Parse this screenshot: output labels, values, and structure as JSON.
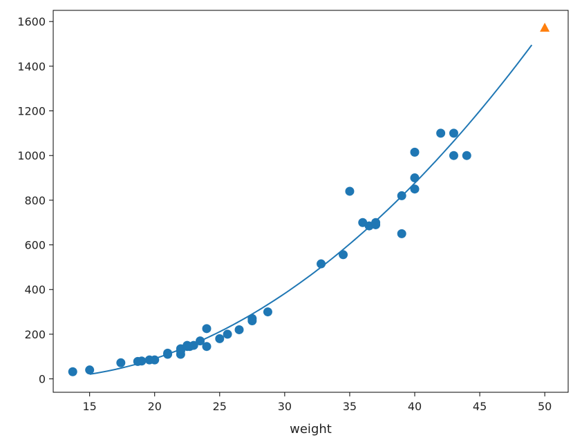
{
  "chart_data": {
    "type": "scatter",
    "title": "",
    "xlabel": "weight",
    "ylabel": "",
    "xlim": [
      12.2,
      51.8
    ],
    "ylim": [
      -60,
      1650
    ],
    "xticks": [
      15,
      20,
      25,
      30,
      35,
      40,
      45,
      50
    ],
    "yticks": [
      0,
      200,
      400,
      600,
      800,
      1000,
      1200,
      1400,
      1600
    ],
    "grid": false,
    "colors": {
      "blue": "#1f77b4",
      "orange": "#ff7f0e"
    },
    "scatter_points": [
      [
        13.7,
        32
      ],
      [
        15.0,
        40
      ],
      [
        17.4,
        72
      ],
      [
        18.7,
        78
      ],
      [
        19.0,
        80
      ],
      [
        19.6,
        85
      ],
      [
        20.0,
        85
      ],
      [
        21.0,
        110
      ],
      [
        21.0,
        115
      ],
      [
        22.0,
        110
      ],
      [
        22.0,
        125
      ],
      [
        22.0,
        130
      ],
      [
        22.0,
        135
      ],
      [
        22.5,
        145
      ],
      [
        22.5,
        150
      ],
      [
        22.7,
        145
      ],
      [
        23.0,
        150
      ],
      [
        23.5,
        170
      ],
      [
        24.0,
        145
      ],
      [
        24.0,
        225
      ],
      [
        25.0,
        180
      ],
      [
        25.6,
        200
      ],
      [
        26.5,
        220
      ],
      [
        27.5,
        260
      ],
      [
        27.5,
        270
      ],
      [
        28.7,
        300
      ],
      [
        32.8,
        515
      ],
      [
        34.5,
        556
      ],
      [
        35.0,
        840
      ],
      [
        36.0,
        700
      ],
      [
        36.5,
        685
      ],
      [
        37.0,
        690
      ],
      [
        37.0,
        700
      ],
      [
        39.0,
        650
      ],
      [
        39.0,
        820
      ],
      [
        40.0,
        850
      ],
      [
        40.0,
        900
      ],
      [
        40.0,
        1015
      ],
      [
        42.0,
        1100
      ],
      [
        43.0,
        1000
      ],
      [
        43.0,
        1100
      ],
      [
        44.0,
        1000
      ]
    ],
    "prediction": {
      "x": 50,
      "y": 1573
    },
    "fit_curve": {
      "x_start": 15,
      "x_end": 49,
      "coef_a": 1.0143,
      "coef_b": -21.5579,
      "intercept": 116.0502
    }
  }
}
